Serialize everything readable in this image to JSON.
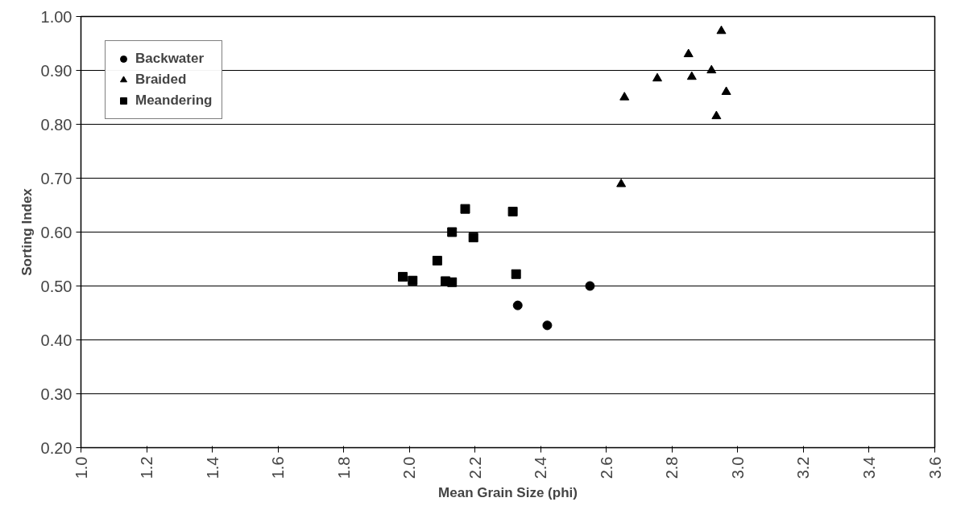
{
  "chart_data": {
    "type": "scatter",
    "xlabel": "Mean Grain Size (phi)",
    "ylabel": "Sorting Index",
    "xlim": [
      1.0,
      3.6
    ],
    "xticks": [
      {
        "value": 1.0,
        "label": "1.0"
      },
      {
        "value": 1.2,
        "label": "1.2"
      },
      {
        "value": 1.4,
        "label": "1.4"
      },
      {
        "value": 1.6,
        "label": "1.6"
      },
      {
        "value": 1.8,
        "label": "1.8"
      },
      {
        "value": 2.0,
        "label": "2.0"
      },
      {
        "value": 2.2,
        "label": "2.2"
      },
      {
        "value": 2.4,
        "label": "2.4"
      },
      {
        "value": 2.6,
        "label": "2.6"
      },
      {
        "value": 2.8,
        "label": "2.8"
      },
      {
        "value": 3.0,
        "label": "3.0"
      },
      {
        "value": 3.2,
        "label": "3.2"
      },
      {
        "value": 3.4,
        "label": "3.4"
      },
      {
        "value": 3.6,
        "label": "3.6"
      }
    ],
    "ylim": [
      0.2,
      1.0
    ],
    "yticks": [
      {
        "value": 0.2,
        "label": "0.20"
      },
      {
        "value": 0.3,
        "label": "0.30"
      },
      {
        "value": 0.4,
        "label": "0.40"
      },
      {
        "value": 0.5,
        "label": "0.50"
      },
      {
        "value": 0.6,
        "label": "0.60"
      },
      {
        "value": 0.7,
        "label": "0.70"
      },
      {
        "value": 0.8,
        "label": "0.80"
      },
      {
        "value": 0.9,
        "label": "0.90"
      },
      {
        "value": 1.0,
        "label": "1.00"
      }
    ],
    "grid": "y",
    "legend": "top left",
    "series": [
      {
        "name": "Backwater",
        "color": "#000000",
        "marker": "circle",
        "x": [
          2.55,
          2.33,
          2.42
        ],
        "values": [
          0.5,
          0.464,
          0.427
        ]
      },
      {
        "name": "Braided",
        "color": "#000000",
        "marker": "triangle",
        "x": [
          2.95,
          2.85,
          2.92,
          2.755,
          2.86,
          2.655,
          2.965,
          2.935,
          2.645
        ],
        "values": [
          0.973,
          0.93,
          0.9,
          0.885,
          0.888,
          0.85,
          0.86,
          0.815,
          0.689
        ]
      },
      {
        "name": "Meandering",
        "color": "#000000",
        "marker": "square",
        "x": [
          2.13,
          2.195,
          2.085,
          1.98,
          2.01,
          2.11,
          2.13,
          2.325,
          2.17,
          2.315
        ],
        "values": [
          0.6,
          0.59,
          0.547,
          0.517,
          0.51,
          0.509,
          0.507,
          0.522,
          0.643,
          0.638
        ]
      }
    ]
  }
}
